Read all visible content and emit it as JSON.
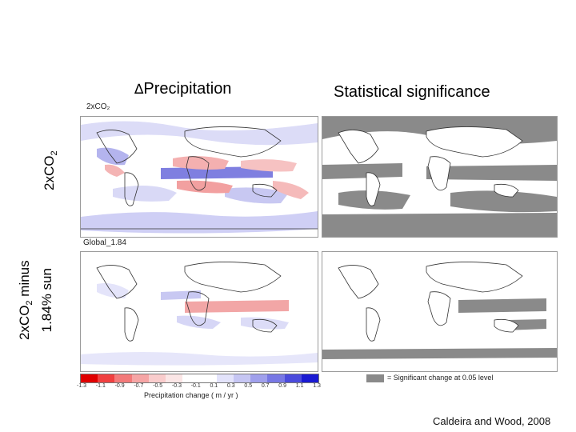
{
  "titles": {
    "delta_symbol": "∆",
    "precipitation": "Precipitation",
    "significance": "Statistical significance"
  },
  "rows": {
    "top": {
      "label": "2x",
      "label_co": "CO",
      "label_sub": "2"
    },
    "bottom": {
      "label_line1": "2xCO",
      "label_sub": "2",
      "label_line1_rest": " minus",
      "label_line2": "1.84% sun"
    }
  },
  "panels": {
    "top_left_label": "2xCO₂",
    "bottom_left_label": "Global_1.84"
  },
  "colorbar": {
    "ticks": [
      "-1.3",
      "-1.1",
      "-0.9",
      "-0.7",
      "-0.5",
      "-0.3",
      "-0.1",
      "0.1",
      "0.3",
      "0.5",
      "0.7",
      "0.9",
      "1.1",
      "1.3"
    ],
    "label": "Precipitation change ( m / yr )",
    "colors": [
      "#e00000",
      "#f04040",
      "#f37a7a",
      "#f6a5a5",
      "#f9cccc",
      "#fbe6e6",
      "#ffffff",
      "#ffffff",
      "#e3e3fb",
      "#c6c6f3",
      "#a0a0ec",
      "#7878e4",
      "#4b4bdc",
      "#1a1ad2"
    ]
  },
  "significance_key": {
    "label": "= Significant change at 0.05 level",
    "color": "#8a8a8a"
  },
  "credit": "Caldeira and Wood, 2008"
}
